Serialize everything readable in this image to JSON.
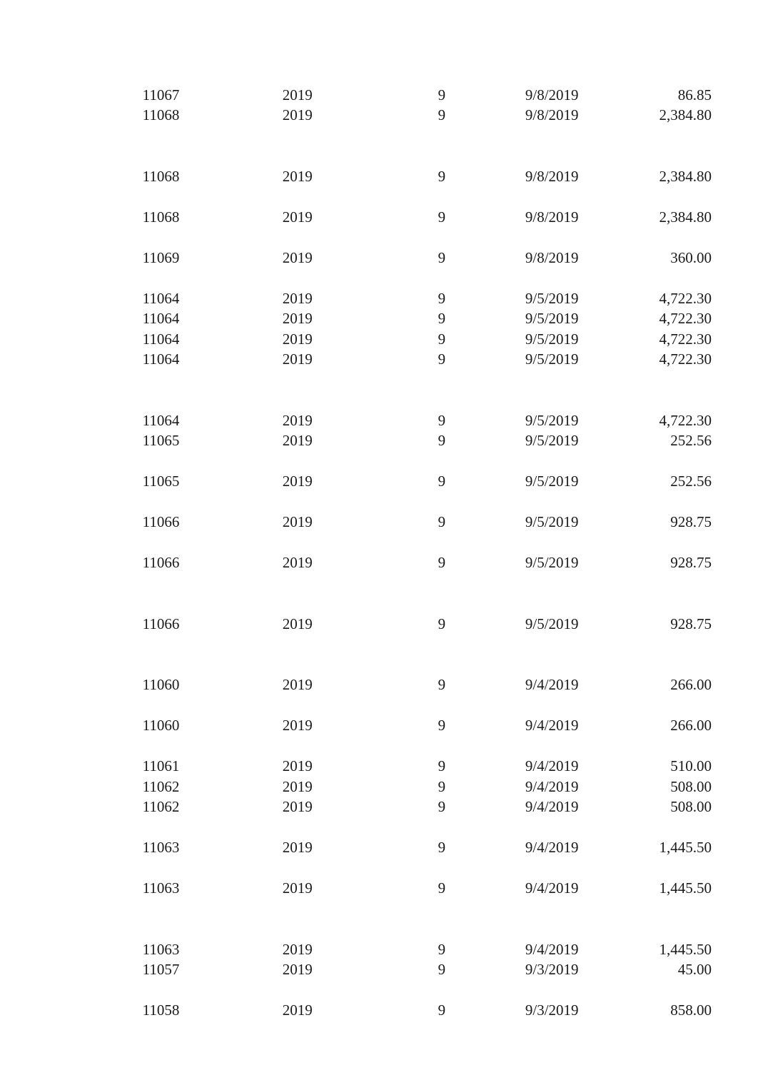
{
  "table": {
    "background_color": "#ffffff",
    "text_color": "#1a1a1a",
    "font_family": "Times New Roman",
    "font_size_pt": 16,
    "columns": [
      {
        "key": "id",
        "align": "right",
        "width_pct": 14
      },
      {
        "key": "year",
        "align": "right",
        "width_pct": 20
      },
      {
        "key": "month",
        "align": "right",
        "width_pct": 22
      },
      {
        "key": "date",
        "align": "right",
        "width_pct": 20
      },
      {
        "key": "amount",
        "align": "right",
        "width_pct": 24
      }
    ],
    "rows": [
      {
        "blank": true
      },
      {
        "id": "11067",
        "year": "2019",
        "month": "9",
        "date": "9/8/2019",
        "amount": "86.85"
      },
      {
        "id": "11068",
        "year": "2019",
        "month": "9",
        "date": "9/8/2019",
        "amount": "2,384.80"
      },
      {
        "blank": true
      },
      {
        "blank": true
      },
      {
        "id": "11068",
        "year": "2019",
        "month": "9",
        "date": "9/8/2019",
        "amount": "2,384.80"
      },
      {
        "blank": true
      },
      {
        "id": "11068",
        "year": "2019",
        "month": "9",
        "date": "9/8/2019",
        "amount": "2,384.80"
      },
      {
        "blank": true
      },
      {
        "id": "11069",
        "year": "2019",
        "month": "9",
        "date": "9/8/2019",
        "amount": "360.00"
      },
      {
        "blank": true
      },
      {
        "id": "11064",
        "year": "2019",
        "month": "9",
        "date": "9/5/2019",
        "amount": "4,722.30"
      },
      {
        "id": "11064",
        "year": "2019",
        "month": "9",
        "date": "9/5/2019",
        "amount": "4,722.30"
      },
      {
        "id": "11064",
        "year": "2019",
        "month": "9",
        "date": "9/5/2019",
        "amount": "4,722.30"
      },
      {
        "id": "11064",
        "year": "2019",
        "month": "9",
        "date": "9/5/2019",
        "amount": "4,722.30"
      },
      {
        "blank": true
      },
      {
        "blank": true
      },
      {
        "id": "11064",
        "year": "2019",
        "month": "9",
        "date": "9/5/2019",
        "amount": "4,722.30"
      },
      {
        "id": "11065",
        "year": "2019",
        "month": "9",
        "date": "9/5/2019",
        "amount": "252.56"
      },
      {
        "blank": true
      },
      {
        "id": "11065",
        "year": "2019",
        "month": "9",
        "date": "9/5/2019",
        "amount": "252.56"
      },
      {
        "blank": true
      },
      {
        "id": "11066",
        "year": "2019",
        "month": "9",
        "date": "9/5/2019",
        "amount": "928.75"
      },
      {
        "blank": true
      },
      {
        "id": "11066",
        "year": "2019",
        "month": "9",
        "date": "9/5/2019",
        "amount": "928.75"
      },
      {
        "blank": true
      },
      {
        "blank": true
      },
      {
        "id": "11066",
        "year": "2019",
        "month": "9",
        "date": "9/5/2019",
        "amount": "928.75"
      },
      {
        "blank": true
      },
      {
        "blank": true
      },
      {
        "id": "11060",
        "year": "2019",
        "month": "9",
        "date": "9/4/2019",
        "amount": "266.00"
      },
      {
        "blank": true
      },
      {
        "id": "11060",
        "year": "2019",
        "month": "9",
        "date": "9/4/2019",
        "amount": "266.00"
      },
      {
        "blank": true
      },
      {
        "id": "11061",
        "year": "2019",
        "month": "9",
        "date": "9/4/2019",
        "amount": "510.00"
      },
      {
        "id": "11062",
        "year": "2019",
        "month": "9",
        "date": "9/4/2019",
        "amount": "508.00"
      },
      {
        "id": "11062",
        "year": "2019",
        "month": "9",
        "date": "9/4/2019",
        "amount": "508.00"
      },
      {
        "blank": true
      },
      {
        "id": "11063",
        "year": "2019",
        "month": "9",
        "date": "9/4/2019",
        "amount": "1,445.50"
      },
      {
        "blank": true
      },
      {
        "id": "11063",
        "year": "2019",
        "month": "9",
        "date": "9/4/2019",
        "amount": "1,445.50"
      },
      {
        "blank": true
      },
      {
        "blank": true
      },
      {
        "id": "11063",
        "year": "2019",
        "month": "9",
        "date": "9/4/2019",
        "amount": "1,445.50"
      },
      {
        "id": "11057",
        "year": "2019",
        "month": "9",
        "date": "9/3/2019",
        "amount": "45.00"
      },
      {
        "blank": true
      },
      {
        "id": "11058",
        "year": "2019",
        "month": "9",
        "date": "9/3/2019",
        "amount": "858.00"
      }
    ]
  }
}
